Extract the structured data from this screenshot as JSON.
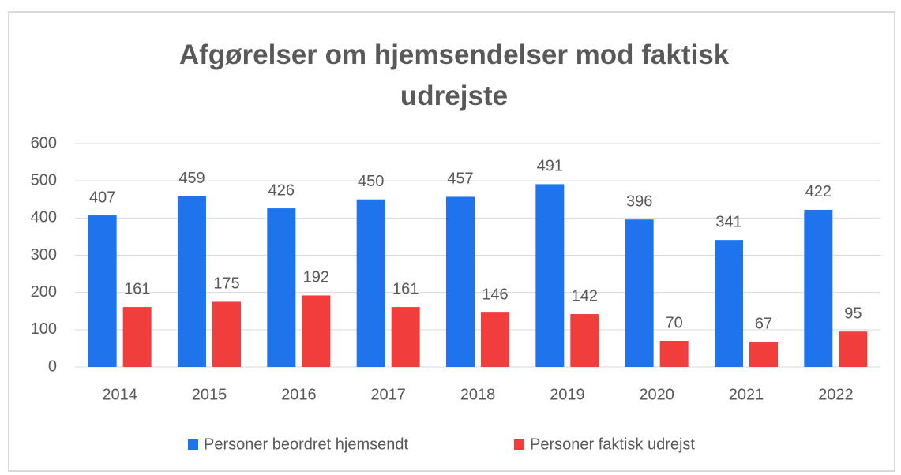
{
  "chart_data": {
    "type": "bar",
    "title": "Afgørelser om hjemsendelser mod faktisk udrejste",
    "categories": [
      "2014",
      "2015",
      "2016",
      "2017",
      "2018",
      "2019",
      "2020",
      "2021",
      "2022"
    ],
    "series": [
      {
        "name": "Personer beordret hjemsendt",
        "color": "#1f74ee",
        "values": [
          407,
          459,
          426,
          450,
          457,
          491,
          396,
          341,
          422
        ]
      },
      {
        "name": "Personer faktisk udrejst",
        "color": "#f23d3d",
        "values": [
          161,
          175,
          192,
          161,
          146,
          142,
          70,
          67,
          95
        ]
      }
    ],
    "ylim": [
      0,
      600
    ],
    "yticks": [
      0,
      100,
      200,
      300,
      400,
      500,
      600
    ],
    "grid": true,
    "legend": "bottom"
  }
}
